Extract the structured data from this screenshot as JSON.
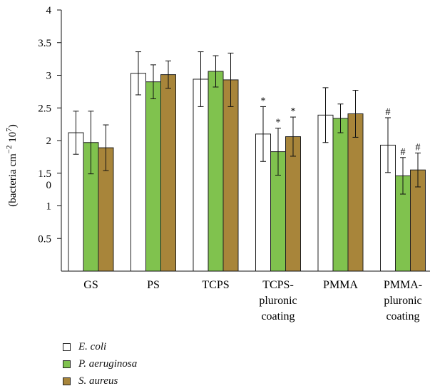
{
  "chart_data": {
    "type": "bar",
    "ylabel_main": "(bacteria cm",
    "ylabel_sup1": "−2",
    "ylabel_mid": " 10",
    "ylabel_sup2": "7",
    "ylabel_end": ")",
    "ylim": [
      0,
      4
    ],
    "yticks": [
      "0.5",
      "1",
      "1.5",
      "2",
      "2.5",
      "3",
      "3.5",
      "4"
    ],
    "stray_tick_label": "0",
    "categories": [
      [
        "GS"
      ],
      [
        "PS"
      ],
      [
        "TCPS"
      ],
      [
        "TCPS-",
        "pluronic",
        "coating"
      ],
      [
        "PMMA"
      ],
      [
        "PMMA-",
        "pluronic",
        "coating"
      ]
    ],
    "series": [
      {
        "name": "E. coli",
        "color": "#ffffff",
        "values": [
          2.12,
          3.03,
          2.94,
          2.1,
          2.39,
          1.93
        ],
        "errors": [
          0.33,
          0.33,
          0.42,
          0.42,
          0.42,
          0.42
        ],
        "annotations": [
          "",
          "",
          "",
          "*",
          "",
          "#"
        ]
      },
      {
        "name": "P. aeruginosa",
        "color": "#80c24e",
        "values": [
          1.97,
          2.9,
          3.06,
          1.83,
          2.34,
          1.46
        ],
        "errors": [
          0.48,
          0.26,
          0.24,
          0.36,
          0.22,
          0.28
        ],
        "annotations": [
          "",
          "",
          "",
          "*",
          "",
          "#"
        ]
      },
      {
        "name": "S. aureus",
        "color": "#a8853a",
        "values": [
          1.89,
          3.01,
          2.93,
          2.06,
          2.41,
          1.55
        ],
        "errors": [
          0.35,
          0.21,
          0.41,
          0.3,
          0.36,
          0.26
        ],
        "annotations": [
          "",
          "",
          "",
          "*",
          "",
          "#"
        ]
      }
    ]
  }
}
